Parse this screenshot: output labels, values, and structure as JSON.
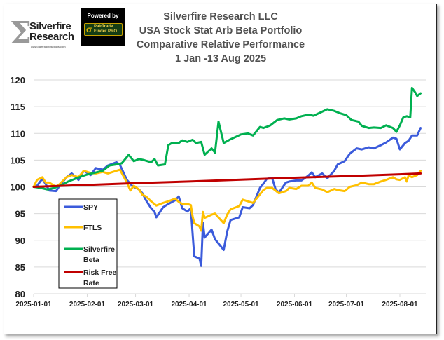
{
  "branding": {
    "logo_sigma": "Σ",
    "logo_line1": "Silverfire",
    "logo_line2": "Research",
    "logo_url": "www.pairtradingsignals.com",
    "powered_by": "Powered by",
    "badge_line1": "PairTrade",
    "badge_line2": "Finder PRO",
    "badge_icon": "σ"
  },
  "chart_data": {
    "type": "line",
    "title": [
      "Silverfire Research LLC",
      "USA Stock Stat Arb Beta Portfolio",
      "Comparative Relative Performance",
      "1 Jan -13 Aug 2025"
    ],
    "xlabel": "",
    "ylabel": "",
    "ylim": [
      80,
      120
    ],
    "yticks": [
      80,
      85,
      90,
      95,
      100,
      105,
      110,
      115,
      120
    ],
    "xlim": [
      "2025-01-01",
      "2025-08-13"
    ],
    "xticks": [
      "2025-01-01",
      "2025-02-01",
      "2025-03-01",
      "2025-04-01",
      "2025-05-01",
      "2025-06-01",
      "2025-07-01",
      "2025-08-01"
    ],
    "grid": "horizontal",
    "legend_position": "left-bottom",
    "series": [
      {
        "name": "SPY",
        "color": "#3b5bdb",
        "points": [
          [
            "2025-01-01",
            100.0
          ],
          [
            "2025-01-03",
            100.2
          ],
          [
            "2025-01-06",
            101.5
          ],
          [
            "2025-01-08",
            100.5
          ],
          [
            "2025-01-10",
            99.3
          ],
          [
            "2025-01-14",
            99.2
          ],
          [
            "2025-01-16",
            100.2
          ],
          [
            "2025-01-20",
            101.8
          ],
          [
            "2025-01-23",
            102.5
          ],
          [
            "2025-01-27",
            101.3
          ],
          [
            "2025-01-30",
            103.0
          ],
          [
            "2025-02-03",
            102.2
          ],
          [
            "2025-02-06",
            103.5
          ],
          [
            "2025-02-10",
            103.2
          ],
          [
            "2025-02-13",
            104.0
          ],
          [
            "2025-02-18",
            104.6
          ],
          [
            "2025-02-20",
            104.1
          ],
          [
            "2025-02-24",
            101.3
          ],
          [
            "2025-02-27",
            100.2
          ],
          [
            "2025-03-03",
            99.5
          ],
          [
            "2025-03-05",
            98.8
          ],
          [
            "2025-03-07",
            97.5
          ],
          [
            "2025-03-10",
            96.0
          ],
          [
            "2025-03-12",
            95.3
          ],
          [
            "2025-03-13",
            94.3
          ],
          [
            "2025-03-17",
            96.2
          ],
          [
            "2025-03-20",
            96.8
          ],
          [
            "2025-03-24",
            97.5
          ],
          [
            "2025-03-26",
            98.2
          ],
          [
            "2025-03-28",
            96.0
          ],
          [
            "2025-03-31",
            95.4
          ],
          [
            "2025-04-02",
            96.0
          ],
          [
            "2025-04-03",
            91.3
          ],
          [
            "2025-04-04",
            87.0
          ],
          [
            "2025-04-07",
            86.6
          ],
          [
            "2025-04-08",
            85.2
          ],
          [
            "2025-04-09",
            93.3
          ],
          [
            "2025-04-10",
            90.5
          ],
          [
            "2025-04-14",
            92.0
          ],
          [
            "2025-04-16",
            90.2
          ],
          [
            "2025-04-21",
            88.2
          ],
          [
            "2025-04-23",
            91.6
          ],
          [
            "2025-04-25",
            93.8
          ],
          [
            "2025-04-30",
            94.3
          ],
          [
            "2025-05-02",
            96.2
          ],
          [
            "2025-05-06",
            96.0
          ],
          [
            "2025-05-08",
            96.6
          ],
          [
            "2025-05-12",
            99.8
          ],
          [
            "2025-05-14",
            100.6
          ],
          [
            "2025-05-16",
            101.5
          ],
          [
            "2025-05-19",
            101.7
          ],
          [
            "2025-05-21",
            99.6
          ],
          [
            "2025-05-23",
            98.9
          ],
          [
            "2025-05-27",
            100.8
          ],
          [
            "2025-05-29",
            101.0
          ],
          [
            "2025-06-02",
            101.2
          ],
          [
            "2025-06-05",
            101.2
          ],
          [
            "2025-06-09",
            102.1
          ],
          [
            "2025-06-11",
            102.7
          ],
          [
            "2025-06-13",
            101.8
          ],
          [
            "2025-06-17",
            102.5
          ],
          [
            "2025-06-20",
            101.6
          ],
          [
            "2025-06-24",
            103.0
          ],
          [
            "2025-06-26",
            104.2
          ],
          [
            "2025-06-30",
            104.8
          ],
          [
            "2025-07-03",
            106.2
          ],
          [
            "2025-07-07",
            107.2
          ],
          [
            "2025-07-10",
            107.0
          ],
          [
            "2025-07-14",
            107.4
          ],
          [
            "2025-07-17",
            107.2
          ],
          [
            "2025-07-21",
            107.8
          ],
          [
            "2025-07-24",
            108.3
          ],
          [
            "2025-07-28",
            109.2
          ],
          [
            "2025-07-30",
            109.0
          ],
          [
            "2025-08-01",
            107.0
          ],
          [
            "2025-08-04",
            108.2
          ],
          [
            "2025-08-06",
            108.6
          ],
          [
            "2025-08-08",
            109.6
          ],
          [
            "2025-08-11",
            109.6
          ],
          [
            "2025-08-13",
            111.0
          ]
        ]
      },
      {
        "name": "FTLS",
        "color": "#ffc000",
        "points": [
          [
            "2025-01-01",
            100.0
          ],
          [
            "2025-01-03",
            101.3
          ],
          [
            "2025-01-06",
            101.8
          ],
          [
            "2025-01-08",
            100.8
          ],
          [
            "2025-01-10",
            100.8
          ],
          [
            "2025-01-14",
            100.0
          ],
          [
            "2025-01-16",
            100.5
          ],
          [
            "2025-01-20",
            101.8
          ],
          [
            "2025-01-23",
            102.2
          ],
          [
            "2025-01-27",
            101.8
          ],
          [
            "2025-01-30",
            103.0
          ],
          [
            "2025-02-03",
            102.6
          ],
          [
            "2025-02-06",
            102.5
          ],
          [
            "2025-02-10",
            102.8
          ],
          [
            "2025-02-13",
            102.5
          ],
          [
            "2025-02-18",
            103.0
          ],
          [
            "2025-02-20",
            103.2
          ],
          [
            "2025-02-24",
            100.8
          ],
          [
            "2025-02-26",
            99.3
          ],
          [
            "2025-02-28",
            100.2
          ],
          [
            "2025-03-03",
            99.5
          ],
          [
            "2025-03-05",
            98.5
          ],
          [
            "2025-03-07",
            98.2
          ],
          [
            "2025-03-10",
            97.3
          ],
          [
            "2025-03-13",
            96.5
          ],
          [
            "2025-03-17",
            97.0
          ],
          [
            "2025-03-20",
            97.3
          ],
          [
            "2025-03-24",
            97.8
          ],
          [
            "2025-03-26",
            97.2
          ],
          [
            "2025-03-28",
            96.8
          ],
          [
            "2025-03-31",
            96.8
          ],
          [
            "2025-04-02",
            96.6
          ],
          [
            "2025-04-03",
            94.5
          ],
          [
            "2025-04-04",
            93.2
          ],
          [
            "2025-04-07",
            92.6
          ],
          [
            "2025-04-08",
            91.8
          ],
          [
            "2025-04-09",
            95.3
          ],
          [
            "2025-04-10",
            94.2
          ],
          [
            "2025-04-14",
            94.8
          ],
          [
            "2025-04-16",
            95.0
          ],
          [
            "2025-04-21",
            93.2
          ],
          [
            "2025-04-23",
            94.8
          ],
          [
            "2025-04-25",
            95.8
          ],
          [
            "2025-04-30",
            96.4
          ],
          [
            "2025-05-02",
            97.6
          ],
          [
            "2025-05-06",
            97.2
          ],
          [
            "2025-05-08",
            97.0
          ],
          [
            "2025-05-12",
            98.6
          ],
          [
            "2025-05-14",
            99.4
          ],
          [
            "2025-05-16",
            99.8
          ],
          [
            "2025-05-19",
            99.8
          ],
          [
            "2025-05-21",
            99.3
          ],
          [
            "2025-05-23",
            98.8
          ],
          [
            "2025-05-27",
            99.2
          ],
          [
            "2025-05-29",
            99.8
          ],
          [
            "2025-06-02",
            99.6
          ],
          [
            "2025-06-05",
            100.2
          ],
          [
            "2025-06-09",
            100.2
          ],
          [
            "2025-06-11",
            100.8
          ],
          [
            "2025-06-13",
            99.8
          ],
          [
            "2025-06-17",
            99.5
          ],
          [
            "2025-06-20",
            99.0
          ],
          [
            "2025-06-24",
            99.6
          ],
          [
            "2025-06-26",
            99.4
          ],
          [
            "2025-06-30",
            99.2
          ],
          [
            "2025-07-03",
            100.0
          ],
          [
            "2025-07-07",
            100.3
          ],
          [
            "2025-07-10",
            100.8
          ],
          [
            "2025-07-14",
            100.5
          ],
          [
            "2025-07-17",
            100.5
          ],
          [
            "2025-07-21",
            101.0
          ],
          [
            "2025-07-24",
            101.3
          ],
          [
            "2025-07-28",
            101.8
          ],
          [
            "2025-07-30",
            101.4
          ],
          [
            "2025-08-01",
            101.3
          ],
          [
            "2025-08-04",
            101.8
          ],
          [
            "2025-08-05",
            101.0
          ],
          [
            "2025-08-06",
            102.1
          ],
          [
            "2025-08-08",
            101.8
          ],
          [
            "2025-08-11",
            102.2
          ],
          [
            "2025-08-13",
            103.0
          ]
        ]
      },
      {
        "name": "Silverfire Beta",
        "color": "#00b050",
        "points": [
          [
            "2025-01-01",
            100.0
          ],
          [
            "2025-01-05",
            99.8
          ],
          [
            "2025-01-09",
            99.5
          ],
          [
            "2025-01-13",
            99.8
          ],
          [
            "2025-01-17",
            100.3
          ],
          [
            "2025-01-21",
            101.0
          ],
          [
            "2025-01-25",
            101.5
          ],
          [
            "2025-01-29",
            102.0
          ],
          [
            "2025-02-01",
            102.3
          ],
          [
            "2025-02-05",
            102.6
          ],
          [
            "2025-02-10",
            103.0
          ],
          [
            "2025-02-14",
            104.0
          ],
          [
            "2025-02-18",
            104.2
          ],
          [
            "2025-02-21",
            104.4
          ],
          [
            "2025-02-25",
            106.0
          ],
          [
            "2025-02-28",
            104.8
          ],
          [
            "2025-03-03",
            105.2
          ],
          [
            "2025-03-06",
            105.0
          ],
          [
            "2025-03-10",
            104.6
          ],
          [
            "2025-03-12",
            105.2
          ],
          [
            "2025-03-14",
            104.0
          ],
          [
            "2025-03-18",
            104.2
          ],
          [
            "2025-03-20",
            107.8
          ],
          [
            "2025-03-22",
            108.2
          ],
          [
            "2025-03-26",
            108.2
          ],
          [
            "2025-03-28",
            108.7
          ],
          [
            "2025-03-31",
            108.4
          ],
          [
            "2025-04-03",
            108.8
          ],
          [
            "2025-04-05",
            108.2
          ],
          [
            "2025-04-08",
            108.4
          ],
          [
            "2025-04-10",
            106.0
          ],
          [
            "2025-04-12",
            106.6
          ],
          [
            "2025-04-14",
            107.2
          ],
          [
            "2025-04-16",
            106.4
          ],
          [
            "2025-04-18",
            112.2
          ],
          [
            "2025-04-21",
            108.2
          ],
          [
            "2025-04-25",
            108.9
          ],
          [
            "2025-04-29",
            109.5
          ],
          [
            "2025-05-01",
            109.8
          ],
          [
            "2025-05-05",
            110.0
          ],
          [
            "2025-05-08",
            109.6
          ],
          [
            "2025-05-12",
            111.2
          ],
          [
            "2025-05-14",
            111.0
          ],
          [
            "2025-05-18",
            111.5
          ],
          [
            "2025-05-22",
            112.5
          ],
          [
            "2025-05-26",
            112.8
          ],
          [
            "2025-05-29",
            112.6
          ],
          [
            "2025-06-02",
            112.8
          ],
          [
            "2025-06-05",
            113.2
          ],
          [
            "2025-06-09",
            113.5
          ],
          [
            "2025-06-12",
            113.3
          ],
          [
            "2025-06-16",
            113.9
          ],
          [
            "2025-06-20",
            114.5
          ],
          [
            "2025-06-24",
            114.2
          ],
          [
            "2025-06-27",
            113.8
          ],
          [
            "2025-07-01",
            113.4
          ],
          [
            "2025-07-04",
            112.5
          ],
          [
            "2025-07-08",
            112.2
          ],
          [
            "2025-07-10",
            111.4
          ],
          [
            "2025-07-14",
            111.0
          ],
          [
            "2025-07-17",
            111.1
          ],
          [
            "2025-07-21",
            111.0
          ],
          [
            "2025-07-24",
            111.5
          ],
          [
            "2025-07-28",
            111.0
          ],
          [
            "2025-07-30",
            110.3
          ],
          [
            "2025-08-01",
            111.5
          ],
          [
            "2025-08-03",
            113.0
          ],
          [
            "2025-08-05",
            113.2
          ],
          [
            "2025-08-07",
            113.0
          ],
          [
            "2025-08-08",
            118.5
          ],
          [
            "2025-08-10",
            117.6
          ],
          [
            "2025-08-11",
            117.0
          ],
          [
            "2025-08-13",
            117.5
          ]
        ]
      },
      {
        "name": "Risk Free Rate",
        "color": "#c00000",
        "points": [
          [
            "2025-01-01",
            100.0
          ],
          [
            "2025-02-01",
            100.35
          ],
          [
            "2025-03-01",
            100.7
          ],
          [
            "2025-04-01",
            101.0
          ],
          [
            "2025-05-01",
            101.35
          ],
          [
            "2025-06-01",
            101.7
          ],
          [
            "2025-07-01",
            102.0
          ],
          [
            "2025-08-01",
            102.35
          ],
          [
            "2025-08-13",
            102.5
          ]
        ]
      }
    ]
  }
}
